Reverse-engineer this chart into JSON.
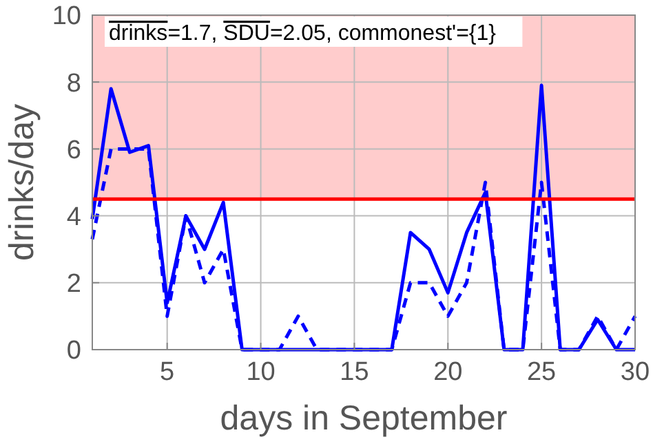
{
  "chart_data": {
    "type": "line",
    "xlabel": "days in September",
    "ylabel": "drinks/day",
    "x": [
      1,
      2,
      3,
      4,
      5,
      6,
      7,
      8,
      9,
      10,
      11,
      12,
      13,
      14,
      15,
      16,
      17,
      18,
      19,
      20,
      21,
      22,
      23,
      24,
      25,
      26,
      27,
      28,
      29,
      30
    ],
    "series": [
      {
        "color": "#0000ff",
        "line_style": "solid",
        "values": [
          3.9,
          7.8,
          5.9,
          6.1,
          1.4,
          4.0,
          3.0,
          4.4,
          0,
          0,
          0,
          0,
          0,
          0,
          0,
          0,
          0,
          3.5,
          3.0,
          1.7,
          3.5,
          4.7,
          0,
          0,
          7.9,
          0,
          0,
          0.9,
          0,
          0
        ]
      },
      {
        "color": "#0000ff",
        "line_style": "dashed",
        "values": [
          3.3,
          6.0,
          6.0,
          6.0,
          1.0,
          4.0,
          2.0,
          3.0,
          0,
          0,
          0,
          1.0,
          0,
          0,
          0,
          0,
          0,
          2.0,
          2.0,
          1.0,
          2.0,
          5.0,
          0,
          0,
          5.0,
          0,
          0,
          1.0,
          0,
          1.0
        ]
      }
    ],
    "xlim": [
      1,
      30
    ],
    "xticks": [
      5,
      10,
      15,
      20,
      25,
      30
    ],
    "ylim": [
      0,
      10
    ],
    "yticks": [
      0,
      2,
      4,
      6,
      8,
      10
    ],
    "grid": true,
    "marker": "none",
    "ref_lines": [
      {
        "axis": "y",
        "value": 4.5,
        "color": "#ff0000"
      }
    ],
    "bands": [
      {
        "axis": "y",
        "from": 4.5,
        "to": 10,
        "color": "#ffcccc"
      }
    ],
    "annotations": [
      "drinks=1.7, SDU=2.05, commonest'={1}"
    ]
  }
}
